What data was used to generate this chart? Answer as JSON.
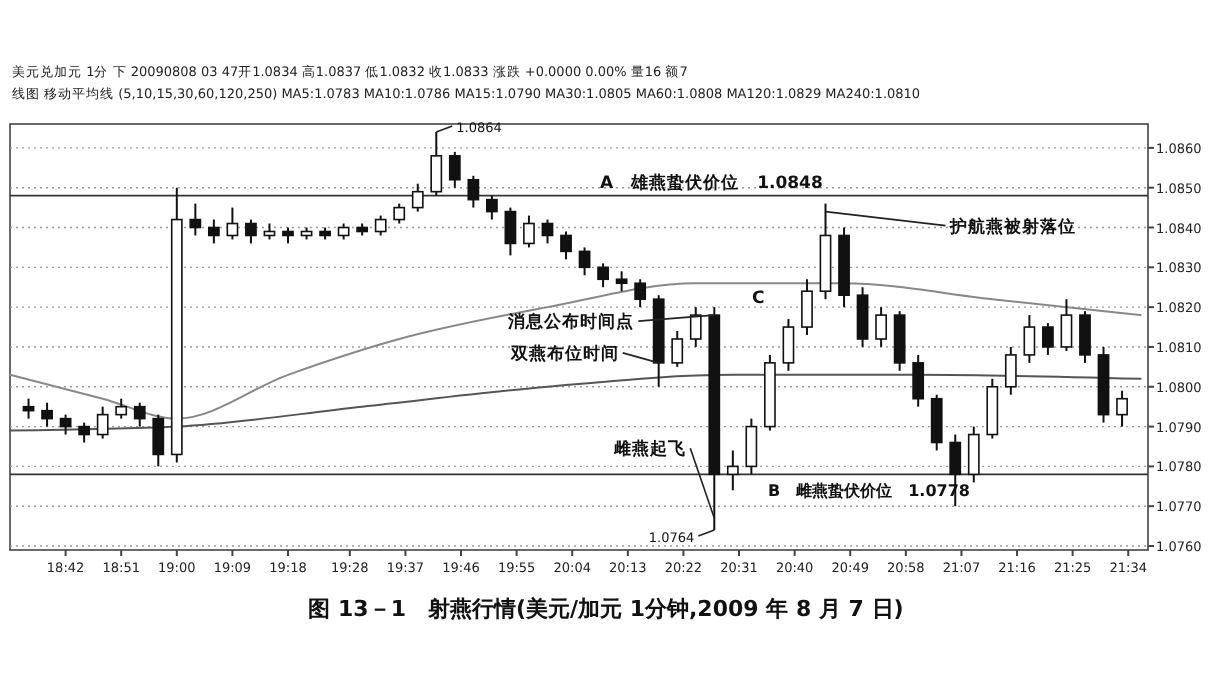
{
  "chart_data": {
    "type": "candlestick",
    "title": "图 13－1　射燕行情(美元/加元 1分钟,2009 年 8 月 7 日)",
    "x": [
      18.6,
      18.65,
      18.7,
      18.75,
      18.8,
      18.85,
      18.9,
      18.95,
      19.0,
      19.05,
      19.1,
      19.15,
      19.2,
      19.25,
      19.3,
      19.35,
      19.4,
      19.45,
      19.5,
      19.55,
      19.6,
      19.65,
      19.7,
      19.75,
      19.8,
      19.85,
      19.9,
      19.95,
      20.0,
      20.05,
      20.1,
      20.15,
      20.2,
      20.25,
      20.3,
      20.35,
      20.4,
      20.45,
      20.5,
      20.55,
      20.6,
      20.65,
      20.7,
      20.75,
      20.8,
      20.85,
      20.9,
      20.95,
      21.0,
      21.05,
      21.1,
      21.15,
      21.2,
      21.25,
      21.3,
      21.35,
      21.4,
      21.45,
      21.5,
      21.55
    ],
    "ohlc": [
      [
        1.0795,
        1.0797,
        1.0792,
        1.0794
      ],
      [
        1.0794,
        1.0796,
        1.079,
        1.0792
      ],
      [
        1.0792,
        1.0793,
        1.0788,
        1.079
      ],
      [
        1.079,
        1.0791,
        1.0786,
        1.0788
      ],
      [
        1.0788,
        1.0795,
        1.0787,
        1.0793
      ],
      [
        1.0793,
        1.0797,
        1.0792,
        1.0795
      ],
      [
        1.0795,
        1.0796,
        1.079,
        1.0792
      ],
      [
        1.0792,
        1.0793,
        1.078,
        1.0783
      ],
      [
        1.0783,
        1.085,
        1.0781,
        1.0842
      ],
      [
        1.0842,
        1.0846,
        1.0838,
        1.084
      ],
      [
        1.084,
        1.0842,
        1.0836,
        1.0838
      ],
      [
        1.0838,
        1.0845,
        1.0837,
        1.0841
      ],
      [
        1.0841,
        1.0842,
        1.0836,
        1.0838
      ],
      [
        1.0838,
        1.0841,
        1.0837,
        1.0839
      ],
      [
        1.0839,
        1.084,
        1.0836,
        1.0838
      ],
      [
        1.0838,
        1.084,
        1.0837,
        1.0839
      ],
      [
        1.0839,
        1.084,
        1.0837,
        1.0838
      ],
      [
        1.0838,
        1.0841,
        1.0837,
        1.084
      ],
      [
        1.084,
        1.0841,
        1.0838,
        1.0839
      ],
      [
        1.0839,
        1.0843,
        1.0838,
        1.0842
      ],
      [
        1.0842,
        1.0846,
        1.0841,
        1.0845
      ],
      [
        1.0845,
        1.0851,
        1.0844,
        1.0849
      ],
      [
        1.0849,
        1.0864,
        1.0848,
        1.0858
      ],
      [
        1.0858,
        1.0859,
        1.085,
        1.0852
      ],
      [
        1.0852,
        1.0853,
        1.0845,
        1.0847
      ],
      [
        1.0847,
        1.0848,
        1.0842,
        1.0844
      ],
      [
        1.0844,
        1.0845,
        1.0833,
        1.0836
      ],
      [
        1.0836,
        1.0843,
        1.0835,
        1.0841
      ],
      [
        1.0841,
        1.0842,
        1.0836,
        1.0838
      ],
      [
        1.0838,
        1.0839,
        1.0832,
        1.0834
      ],
      [
        1.0834,
        1.0835,
        1.0828,
        1.083
      ],
      [
        1.083,
        1.0831,
        1.0825,
        1.0827
      ],
      [
        1.0827,
        1.0829,
        1.0824,
        1.0826
      ],
      [
        1.0826,
        1.0827,
        1.082,
        1.0822
      ],
      [
        1.0822,
        1.0823,
        1.08,
        1.0806
      ],
      [
        1.0806,
        1.0814,
        1.0805,
        1.0812
      ],
      [
        1.0812,
        1.082,
        1.081,
        1.0818
      ],
      [
        1.0818,
        1.082,
        1.0764,
        1.0778
      ],
      [
        1.0778,
        1.0784,
        1.0774,
        1.078
      ],
      [
        1.078,
        1.0792,
        1.0778,
        1.079
      ],
      [
        1.079,
        1.0808,
        1.0789,
        1.0806
      ],
      [
        1.0806,
        1.0817,
        1.0804,
        1.0815
      ],
      [
        1.0815,
        1.0827,
        1.0813,
        1.0824
      ],
      [
        1.0824,
        1.0846,
        1.0822,
        1.0838
      ],
      [
        1.0838,
        1.084,
        1.082,
        1.0823
      ],
      [
        1.0823,
        1.0825,
        1.081,
        1.0812
      ],
      [
        1.0812,
        1.082,
        1.081,
        1.0818
      ],
      [
        1.0818,
        1.0819,
        1.0804,
        1.0806
      ],
      [
        1.0806,
        1.0808,
        1.0795,
        1.0797
      ],
      [
        1.0797,
        1.0798,
        1.0784,
        1.0786
      ],
      [
        1.0786,
        1.0788,
        1.077,
        1.0778
      ],
      [
        1.0778,
        1.079,
        1.0776,
        1.0788
      ],
      [
        1.0788,
        1.0802,
        1.0787,
        1.08
      ],
      [
        1.08,
        1.081,
        1.0798,
        1.0808
      ],
      [
        1.0808,
        1.0818,
        1.0806,
        1.0815
      ],
      [
        1.0815,
        1.0816,
        1.0808,
        1.081
      ],
      [
        1.081,
        1.0822,
        1.0809,
        1.0818
      ],
      [
        1.0818,
        1.0819,
        1.0806,
        1.0808
      ],
      [
        1.0808,
        1.081,
        1.0791,
        1.0793
      ],
      [
        1.0793,
        1.0799,
        1.079,
        1.0797
      ]
    ],
    "color": "#111111",
    "series": [
      {
        "type": "line",
        "color": "#555555",
        "x": [
          18.55,
          19.0,
          19.5,
          20.0,
          20.5,
          21.0,
          21.6
        ],
        "values": [
          1.0789,
          1.079,
          1.0795,
          1.08,
          1.0803,
          1.0803,
          1.0802
        ]
      },
      {
        "type": "line",
        "color": "#888888",
        "x": [
          18.55,
          18.8,
          19.0,
          19.3,
          19.6,
          20.0,
          20.4,
          20.8,
          21.2,
          21.6
        ],
        "values": [
          1.0803,
          1.0797,
          1.0792,
          1.0803,
          1.0812,
          1.082,
          1.0826,
          1.0826,
          1.0822,
          1.0818
        ]
      }
    ],
    "xlim": [
      18.55,
      21.62
    ],
    "xticks": [
      {
        "value": 18.7,
        "label": "18:42"
      },
      {
        "value": 18.85,
        "label": "18:51"
      },
      {
        "value": 19.0,
        "label": "19:00"
      },
      {
        "value": 19.15,
        "label": "19:09"
      },
      {
        "value": 19.3,
        "label": "19:18"
      },
      {
        "value": 19.4667,
        "label": "19:28"
      },
      {
        "value": 19.6167,
        "label": "19:37"
      },
      {
        "value": 19.7667,
        "label": "19:46"
      },
      {
        "value": 19.9167,
        "label": "19:55"
      },
      {
        "value": 20.0667,
        "label": "20:04"
      },
      {
        "value": 20.2167,
        "label": "20:13"
      },
      {
        "value": 20.3667,
        "label": "20:22"
      },
      {
        "value": 20.5167,
        "label": "20:31"
      },
      {
        "value": 20.6667,
        "label": "20:40"
      },
      {
        "value": 20.8167,
        "label": "20:49"
      },
      {
        "value": 20.9667,
        "label": "20:58"
      },
      {
        "value": 21.1167,
        "label": "21:07"
      },
      {
        "value": 21.2667,
        "label": "21:16"
      },
      {
        "value": 21.4167,
        "label": "21:25"
      },
      {
        "value": 21.5667,
        "label": "21:34"
      }
    ],
    "ylim": [
      1.0759,
      1.0866
    ],
    "yticks": [
      {
        "value": 1.076,
        "label": "1.0760"
      },
      {
        "value": 1.077,
        "label": "1.0770"
      },
      {
        "value": 1.078,
        "label": "1.0780"
      },
      {
        "value": 1.079,
        "label": "1.0790"
      },
      {
        "value": 1.08,
        "label": "1.0800"
      },
      {
        "value": 1.081,
        "label": "1.0810"
      },
      {
        "value": 1.082,
        "label": "1.0820"
      },
      {
        "value": 1.083,
        "label": "1.0830"
      },
      {
        "value": 1.084,
        "label": "1.0840"
      },
      {
        "value": 1.085,
        "label": "1.0850"
      },
      {
        "value": 1.086,
        "label": "1.0860"
      }
    ],
    "grid": "y",
    "ref_lines": [
      {
        "axis": "y",
        "value": 1.0848,
        "label": "A　雄燕蛰伏价位　1.0848"
      },
      {
        "axis": "y",
        "value": 1.0778,
        "label": "B　雌燕蛰伏价位　1.0778"
      }
    ],
    "annotations": [
      {
        "text": "1.0864",
        "x": 19.7,
        "y": 1.0864
      },
      {
        "text": "护航燕被射落位",
        "x": 20.75,
        "y": 1.0844
      },
      {
        "text": "消息公布时间点",
        "x": 20.45,
        "y": 1.0818
      },
      {
        "text": "双燕布位时间",
        "x": 20.3,
        "y": 1.0806
      },
      {
        "text": "雌燕起飞",
        "x": 20.45,
        "y": 1.0767
      },
      {
        "text": "1.0764",
        "x": 20.45,
        "y": 1.0764
      },
      {
        "text": "C",
        "x": 20.65,
        "y": 1.0817
      },
      "美元兑加元 1分 下 20090808 03 47开1.0834 高1.0837 低1.0832 收1.0833 涨跌 +0.0000 0.00% 量16 额7",
      "线图 移动平均线 (5,10,15,30,60,120,250) MA5:1.0783 MA10:1.0786 MA15:1.0790 MA30:1.0805 MA60:1.0808 MA120:1.0829 MA240:1.0810"
    ]
  }
}
